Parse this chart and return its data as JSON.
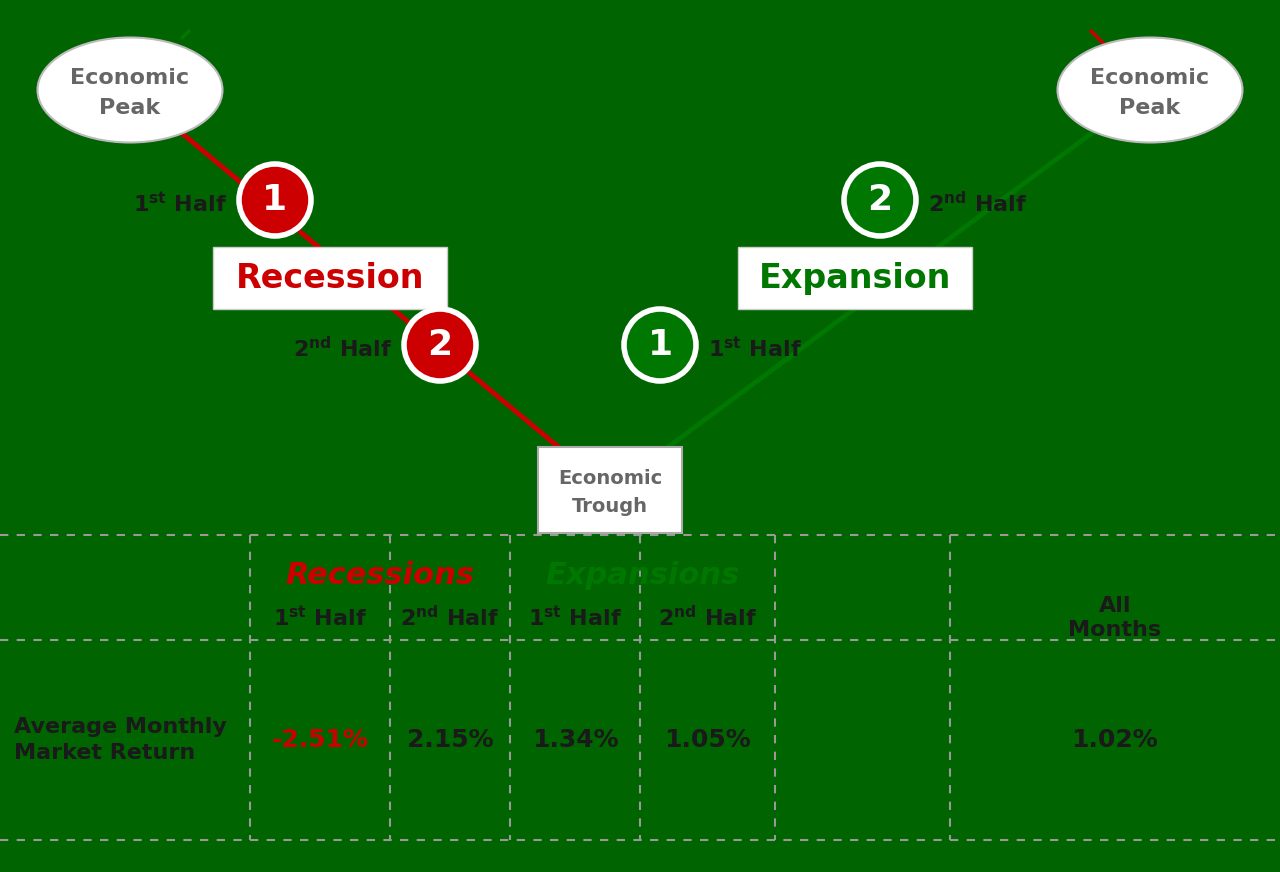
{
  "bg_color": "#006400",
  "recession_color": "#cc0000",
  "expansion_color": "#007700",
  "dark_text": "#1a1a1a",
  "gray_text": "#666666",
  "white": "#ffffff",
  "peak_ellipse_color": "#aaaaaa",
  "trough_box_color": "#aaaaaa",
  "table_line_color": "#888888",
  "table_values": [
    "-2.51%",
    "2.15%",
    "1.34%",
    "1.05%",
    "1.02%"
  ],
  "table_value_colors": [
    "#cc0000",
    "#1a1a1a",
    "#1a1a1a",
    "#1a1a1a",
    "#1a1a1a"
  ],
  "figsize": [
    12.8,
    8.72
  ],
  "dpi": 100
}
